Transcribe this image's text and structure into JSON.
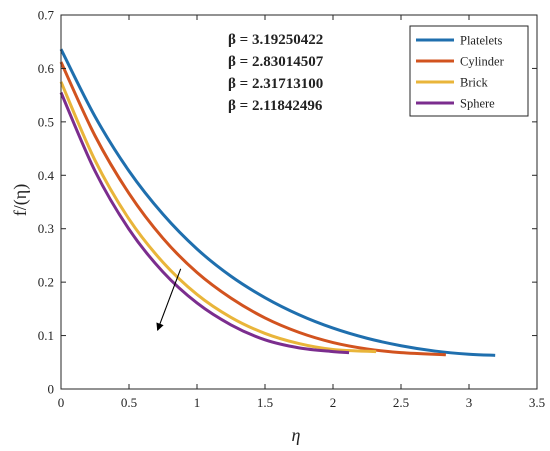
{
  "chart_data": {
    "type": "line",
    "xlabel": "η",
    "ylabel": "f/(η)",
    "xlim": [
      0,
      3.5
    ],
    "ylim": [
      0,
      0.7
    ],
    "xticks": [
      0,
      0.5,
      1,
      1.5,
      2,
      2.5,
      3,
      3.5
    ],
    "yticks": [
      0,
      0.1,
      0.2,
      0.3,
      0.4,
      0.5,
      0.6,
      0.7
    ],
    "grid": false,
    "legend": "top-right",
    "annotations": [
      "β = 3.19250422",
      "β = 2.83014507",
      "β = 2.31713100",
      "β = 2.11842496"
    ],
    "arrow": {
      "from": [
        0.88,
        0.225
      ],
      "to": [
        0.71,
        0.11
      ]
    },
    "series": [
      {
        "name": "Platelets",
        "color": "#1f6fae",
        "x": [
          0,
          0.25,
          0.5,
          0.75,
          1.0,
          1.25,
          1.5,
          1.75,
          2.0,
          2.25,
          2.5,
          2.75,
          3.0,
          3.1925
        ],
        "y": [
          0.636,
          0.51,
          0.408,
          0.327,
          0.262,
          0.211,
          0.171,
          0.139,
          0.114,
          0.095,
          0.081,
          0.071,
          0.065,
          0.063
        ]
      },
      {
        "name": "Cylinder",
        "color": "#d2531f",
        "x": [
          0,
          0.25,
          0.5,
          0.75,
          1.0,
          1.25,
          1.5,
          1.75,
          2.0,
          2.25,
          2.5,
          2.83
        ],
        "y": [
          0.612,
          0.474,
          0.366,
          0.282,
          0.218,
          0.17,
          0.133,
          0.106,
          0.087,
          0.075,
          0.068,
          0.064
        ]
      },
      {
        "name": "Brick",
        "color": "#e9b53a",
        "x": [
          0,
          0.25,
          0.5,
          0.75,
          1.0,
          1.25,
          1.5,
          1.75,
          2.0,
          2.317
        ],
        "y": [
          0.575,
          0.428,
          0.318,
          0.237,
          0.177,
          0.134,
          0.104,
          0.085,
          0.074,
          0.07
        ]
      },
      {
        "name": "Sphere",
        "color": "#7b2d8e",
        "x": [
          0,
          0.25,
          0.5,
          0.75,
          1.0,
          1.25,
          1.5,
          1.75,
          2.0,
          2.118
        ],
        "y": [
          0.555,
          0.408,
          0.299,
          0.219,
          0.161,
          0.12,
          0.092,
          0.077,
          0.07,
          0.068
        ]
      }
    ]
  }
}
